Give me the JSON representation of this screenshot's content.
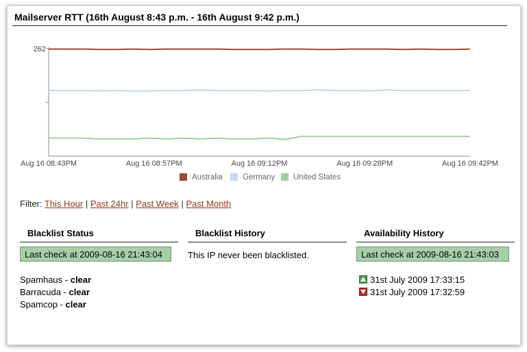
{
  "graph": {
    "title": "Mailserver RTT (16th August 8:43 p.m. - 16th August 9:42 p.m.)"
  },
  "chart_data": {
    "type": "line",
    "title": "Mailserver RTT (16th August 8:43 p.m. - 16th August 9:42 p.m.)",
    "xlabel": "",
    "ylabel": "",
    "ylim": [
      0,
      262
    ],
    "yticks": [
      "262"
    ],
    "x_tick_labels": [
      "Aug 16 08:43PM",
      "Aug 16 08:57PM",
      "Aug 16 09:12PM",
      "Aug 16 09:28PM",
      "Aug 16 09:42PM"
    ],
    "x": [
      0,
      1,
      2,
      3,
      4,
      5,
      6,
      7,
      8,
      9,
      10,
      11,
      12,
      13,
      14,
      15,
      16,
      17,
      18,
      19,
      20,
      21,
      22,
      23,
      24,
      25
    ],
    "grid": false,
    "legend_position": "bottom",
    "series": [
      {
        "name": "Australia",
        "color": "#9b4a34",
        "values": [
          261,
          261,
          261,
          260,
          260,
          261,
          260,
          261,
          261,
          261,
          261,
          260,
          260,
          260,
          261,
          261,
          260,
          260,
          261,
          261,
          261,
          260,
          261,
          260,
          260,
          261
        ]
      },
      {
        "name": "Germany",
        "color": "#c4d8f3",
        "values": [
          160,
          160,
          160,
          159,
          160,
          159,
          159,
          160,
          160,
          161,
          160,
          160,
          160,
          159,
          160,
          160,
          161,
          160,
          160,
          159,
          161,
          160,
          160,
          160,
          160,
          160
        ]
      },
      {
        "name": "United States",
        "color": "#9fd0a0",
        "values": [
          44,
          44,
          44,
          42,
          42,
          42,
          44,
          42,
          44,
          42,
          44,
          42,
          42,
          44,
          41,
          48,
          48,
          48,
          48,
          48,
          48,
          48,
          48,
          48,
          48,
          48
        ]
      }
    ]
  },
  "filter": {
    "label": "Filter:",
    "links": [
      "This Hour",
      "Past 24hr",
      "Past Week",
      "Past Month"
    ],
    "separator": "|"
  },
  "blacklist_status": {
    "heading": "Blacklist Status",
    "last_check": "Last check at 2009-08-16 21:43:04",
    "items": [
      {
        "name": "Spamhaus",
        "dash": " - ",
        "status": "clear"
      },
      {
        "name": "Barracuda",
        "dash": " - ",
        "status": "clear"
      },
      {
        "name": "Spamcop",
        "dash": " - ",
        "status": "clear"
      }
    ]
  },
  "blacklist_history": {
    "heading": "Blacklist History",
    "message": "This IP never been blacklisted."
  },
  "availability_history": {
    "heading": "Availability History",
    "last_check": "Last check at 2009-08-16 21:43:03",
    "events": [
      {
        "icon": "up-arrow-icon",
        "color": "#4f9a52",
        "text": "31st July 2009 17:33:15"
      },
      {
        "icon": "down-arrow-icon",
        "color": "#b0302a",
        "text": "31st July 2009 17:32:59"
      }
    ]
  }
}
